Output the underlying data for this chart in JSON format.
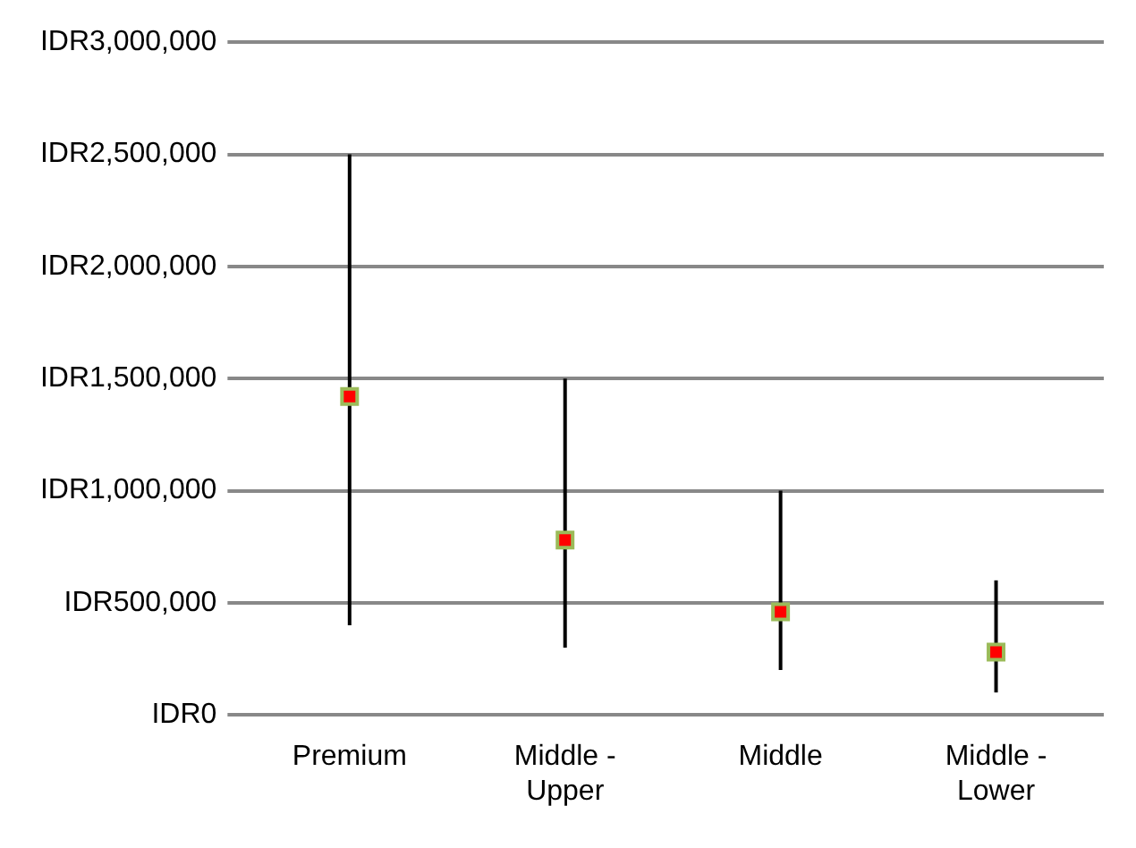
{
  "chart_data": {
    "type": "scatter",
    "categories": [
      "Premium",
      "Middle - Upper",
      "Middle",
      "Middle - Lower"
    ],
    "values": [
      1420000,
      780000,
      460000,
      280000
    ],
    "errors": [
      [
        400000,
        2500000
      ],
      [
        300000,
        1500000
      ],
      [
        200000,
        1000000
      ],
      [
        100000,
        600000
      ]
    ],
    "color": "#ff0000",
    "marker": "square",
    "ylim": [
      0,
      3000000
    ],
    "yticks": [
      {
        "value": 0,
        "label": "0"
      },
      {
        "value": 500000,
        "label": "500,000"
      },
      {
        "value": 1000000,
        "label": "1,000,000"
      },
      {
        "value": 1500000,
        "label": "1,500,000"
      },
      {
        "value": 2000000,
        "label": "2,000,000"
      },
      {
        "value": 2500000,
        "label": "2,500,000"
      },
      {
        "value": 3000000,
        "label": "3,000,000"
      }
    ],
    "ylabel": "IDR",
    "grid": "y",
    "legend": false
  }
}
